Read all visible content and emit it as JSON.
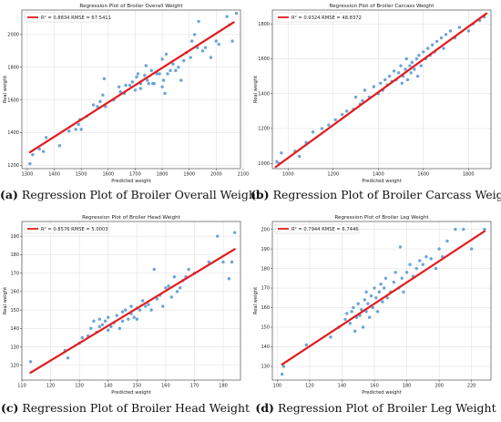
{
  "chart_data": [
    {
      "type": "scatter",
      "title": "Regression Plot of Broiler Overall Weight",
      "xlabel": "Predicted weight",
      "ylabel": "Real weight",
      "legend": "R² = 0.8834  RMSE = 67.5411",
      "xlim": [
        1280,
        2090
      ],
      "ylim": [
        1180,
        2150
      ],
      "xticks": [
        1300,
        1400,
        1500,
        1600,
        1700,
        1800,
        1900,
        2000,
        2100
      ],
      "yticks": [
        1200,
        1400,
        1600,
        1800,
        2000
      ],
      "fit_line": [
        [
          1310,
          1280
        ],
        [
          2065,
          2075
        ]
      ],
      "points": [
        [
          1310,
          1210
        ],
        [
          1320,
          1265
        ],
        [
          1345,
          1300
        ],
        [
          1360,
          1285
        ],
        [
          1370,
          1370
        ],
        [
          1420,
          1320
        ],
        [
          1455,
          1410
        ],
        [
          1480,
          1420
        ],
        [
          1490,
          1450
        ],
        [
          1495,
          1480
        ],
        [
          1500,
          1420
        ],
        [
          1520,
          1500
        ],
        [
          1545,
          1570
        ],
        [
          1560,
          1560
        ],
        [
          1570,
          1590
        ],
        [
          1580,
          1630
        ],
        [
          1585,
          1730
        ],
        [
          1590,
          1560
        ],
        [
          1620,
          1600
        ],
        [
          1640,
          1680
        ],
        [
          1645,
          1650
        ],
        [
          1660,
          1640
        ],
        [
          1665,
          1690
        ],
        [
          1680,
          1690
        ],
        [
          1690,
          1710
        ],
        [
          1700,
          1660
        ],
        [
          1705,
          1740
        ],
        [
          1710,
          1760
        ],
        [
          1720,
          1670
        ],
        [
          1720,
          1700
        ],
        [
          1735,
          1750
        ],
        [
          1740,
          1810
        ],
        [
          1745,
          1720
        ],
        [
          1750,
          1700
        ],
        [
          1760,
          1780
        ],
        [
          1765,
          1700
        ],
        [
          1770,
          1700
        ],
        [
          1780,
          1760
        ],
        [
          1790,
          1760
        ],
        [
          1800,
          1680
        ],
        [
          1800,
          1850
        ],
        [
          1805,
          1720
        ],
        [
          1810,
          1640
        ],
        [
          1815,
          1880
        ],
        [
          1820,
          1760
        ],
        [
          1830,
          1780
        ],
        [
          1840,
          1820
        ],
        [
          1850,
          1780
        ],
        [
          1860,
          1800
        ],
        [
          1870,
          1720
        ],
        [
          1880,
          1840
        ],
        [
          1890,
          1890
        ],
        [
          1905,
          1860
        ],
        [
          1910,
          1960
        ],
        [
          1920,
          2000
        ],
        [
          1930,
          1920
        ],
        [
          1935,
          2080
        ],
        [
          1950,
          1900
        ],
        [
          1960,
          1920
        ],
        [
          1980,
          1860
        ],
        [
          2000,
          1960
        ],
        [
          2010,
          1940
        ],
        [
          2040,
          2110
        ],
        [
          2050,
          2060
        ],
        [
          2060,
          1960
        ],
        [
          2075,
          2130
        ]
      ]
    },
    {
      "type": "scatter",
      "title": "Regression Plot of Broiler Carcass Weight",
      "xlabel": "Predicted weight",
      "ylabel": "Real weight",
      "legend": "R² = 0.9324  RMSE = 48.8372",
      "xlim": [
        930,
        1900
      ],
      "ylim": [
        970,
        1880
      ],
      "xticks": [
        1000,
        1200,
        1400,
        1600,
        1800
      ],
      "yticks": [
        1000,
        1200,
        1400,
        1600,
        1800
      ],
      "fit_line": [
        [
          945,
          980
        ],
        [
          1880,
          1860
        ]
      ],
      "points": [
        [
          950,
          1010
        ],
        [
          960,
          1000
        ],
        [
          970,
          1060
        ],
        [
          1030,
          1070
        ],
        [
          1050,
          1040
        ],
        [
          1080,
          1120
        ],
        [
          1110,
          1180
        ],
        [
          1150,
          1200
        ],
        [
          1180,
          1220
        ],
        [
          1210,
          1250
        ],
        [
          1240,
          1280
        ],
        [
          1260,
          1300
        ],
        [
          1290,
          1310
        ],
        [
          1300,
          1380
        ],
        [
          1320,
          1340
        ],
        [
          1330,
          1360
        ],
        [
          1340,
          1420
        ],
        [
          1360,
          1380
        ],
        [
          1380,
          1440
        ],
        [
          1400,
          1400
        ],
        [
          1410,
          1460
        ],
        [
          1420,
          1420
        ],
        [
          1430,
          1480
        ],
        [
          1440,
          1450
        ],
        [
          1450,
          1500
        ],
        [
          1460,
          1470
        ],
        [
          1470,
          1530
        ],
        [
          1480,
          1480
        ],
        [
          1490,
          1520
        ],
        [
          1500,
          1560
        ],
        [
          1505,
          1460
        ],
        [
          1510,
          1500
        ],
        [
          1520,
          1540
        ],
        [
          1525,
          1600
        ],
        [
          1530,
          1480
        ],
        [
          1540,
          1560
        ],
        [
          1545,
          1520
        ],
        [
          1550,
          1580
        ],
        [
          1560,
          1540
        ],
        [
          1570,
          1600
        ],
        [
          1575,
          1500
        ],
        [
          1580,
          1620
        ],
        [
          1590,
          1560
        ],
        [
          1600,
          1640
        ],
        [
          1610,
          1600
        ],
        [
          1620,
          1660
        ],
        [
          1630,
          1620
        ],
        [
          1640,
          1680
        ],
        [
          1650,
          1640
        ],
        [
          1660,
          1700
        ],
        [
          1680,
          1720
        ],
        [
          1690,
          1660
        ],
        [
          1700,
          1740
        ],
        [
          1720,
          1760
        ],
        [
          1740,
          1720
        ],
        [
          1760,
          1780
        ],
        [
          1800,
          1760
        ],
        [
          1820,
          1800
        ],
        [
          1850,
          1820
        ],
        [
          1870,
          1840
        ]
      ]
    },
    {
      "type": "scatter",
      "title": "Regression Plot of Broiler Head Weight",
      "xlabel": "Predicted weight",
      "ylabel": "Real weight",
      "legend": "R² = 0.8576  RMSE = 5.0003",
      "xlim": [
        110,
        186
      ],
      "ylim": [
        112,
        198
      ],
      "xticks": [
        110,
        120,
        130,
        140,
        150,
        160,
        170,
        180
      ],
      "yticks": [
        120,
        130,
        140,
        150,
        160,
        170,
        180,
        190
      ],
      "fit_line": [
        [
          113,
          116
        ],
        [
          184,
          183
        ]
      ],
      "points": [
        [
          113,
          122
        ],
        [
          125,
          128
        ],
        [
          126,
          124
        ],
        [
          130,
          132
        ],
        [
          131,
          135
        ],
        [
          133,
          136
        ],
        [
          134,
          140
        ],
        [
          135,
          144
        ],
        [
          136,
          138
        ],
        [
          137,
          141
        ],
        [
          137,
          145
        ],
        [
          138,
          142
        ],
        [
          139,
          144
        ],
        [
          140,
          139
        ],
        [
          140,
          146
        ],
        [
          141,
          141
        ],
        [
          142,
          143
        ],
        [
          143,
          147
        ],
        [
          144,
          140
        ],
        [
          145,
          149
        ],
        [
          145,
          144
        ],
        [
          146,
          150
        ],
        [
          147,
          145
        ],
        [
          148,
          152
        ],
        [
          148,
          148
        ],
        [
          149,
          146
        ],
        [
          150,
          151
        ],
        [
          150,
          145
        ],
        [
          151,
          150
        ],
        [
          152,
          155
        ],
        [
          153,
          152
        ],
        [
          154,
          153
        ],
        [
          155,
          150
        ],
        [
          156,
          172
        ],
        [
          157,
          156
        ],
        [
          158,
          158
        ],
        [
          159,
          152
        ],
        [
          160,
          162
        ],
        [
          161,
          163
        ],
        [
          162,
          157
        ],
        [
          163,
          168
        ],
        [
          164,
          160
        ],
        [
          165,
          162
        ],
        [
          166,
          166
        ],
        [
          167,
          168
        ],
        [
          168,
          172
        ],
        [
          170,
          170
        ],
        [
          175,
          176
        ],
        [
          178,
          190
        ],
        [
          180,
          176
        ],
        [
          182,
          167
        ],
        [
          183,
          176
        ],
        [
          184,
          192
        ]
      ]
    },
    {
      "type": "scatter",
      "title": "Regression Plot of Broiler Leg Weight",
      "xlabel": "Predicted weight",
      "ylabel": "Real weight",
      "legend": "R² = 0.7944  RMSE = 6.7446",
      "xlim": [
        97,
        232
      ],
      "ylim": [
        123,
        204
      ],
      "xticks": [
        100,
        120,
        140,
        160,
        180,
        200,
        220
      ],
      "yticks": [
        130,
        140,
        150,
        160,
        170,
        180,
        190,
        200
      ],
      "fit_line": [
        [
          103,
          131
        ],
        [
          228,
          199
        ]
      ],
      "points": [
        [
          103,
          126
        ],
        [
          104,
          130
        ],
        [
          118,
          141
        ],
        [
          133,
          145
        ],
        [
          138,
          150
        ],
        [
          142,
          154
        ],
        [
          143,
          157
        ],
        [
          145,
          152
        ],
        [
          146,
          158
        ],
        [
          147,
          160
        ],
        [
          148,
          148
        ],
        [
          149,
          155
        ],
        [
          150,
          162
        ],
        [
          151,
          156
        ],
        [
          152,
          159
        ],
        [
          153,
          150
        ],
        [
          154,
          164
        ],
        [
          155,
          158
        ],
        [
          155,
          168
        ],
        [
          156,
          162
        ],
        [
          157,
          155
        ],
        [
          158,
          166
        ],
        [
          159,
          160
        ],
        [
          160,
          170
        ],
        [
          161,
          165
        ],
        [
          162,
          158
        ],
        [
          163,
          168
        ],
        [
          164,
          172
        ],
        [
          165,
          163
        ],
        [
          166,
          170
        ],
        [
          167,
          175
        ],
        [
          168,
          165
        ],
        [
          170,
          168
        ],
        [
          172,
          173
        ],
        [
          173,
          178
        ],
        [
          175,
          170
        ],
        [
          176,
          191
        ],
        [
          177,
          175
        ],
        [
          178,
          168
        ],
        [
          180,
          178
        ],
        [
          182,
          182
        ],
        [
          184,
          176
        ],
        [
          186,
          180
        ],
        [
          188,
          184
        ],
        [
          190,
          182
        ],
        [
          192,
          186
        ],
        [
          195,
          185
        ],
        [
          198,
          180
        ],
        [
          200,
          190
        ],
        [
          202,
          186
        ],
        [
          205,
          194
        ],
        [
          210,
          200
        ],
        [
          215,
          200
        ],
        [
          220,
          190
        ],
        [
          228,
          200
        ]
      ]
    }
  ],
  "captions": [
    {
      "tag": "(a)",
      "text": "Regression Plot of Broiler Overall Weight"
    },
    {
      "tag": "(b)",
      "text": "Regression Plot of Broiler Carcass Weight"
    },
    {
      "tag": "(c)",
      "text": "Regression Plot of Broiler Head Weight"
    },
    {
      "tag": "(d)",
      "text": "Regression Plot of Broiler Leg Weight"
    }
  ],
  "colors": {
    "points": "#5b9bd5",
    "fit_line": "#e41a1c",
    "legend_line": "#e41a1c"
  }
}
